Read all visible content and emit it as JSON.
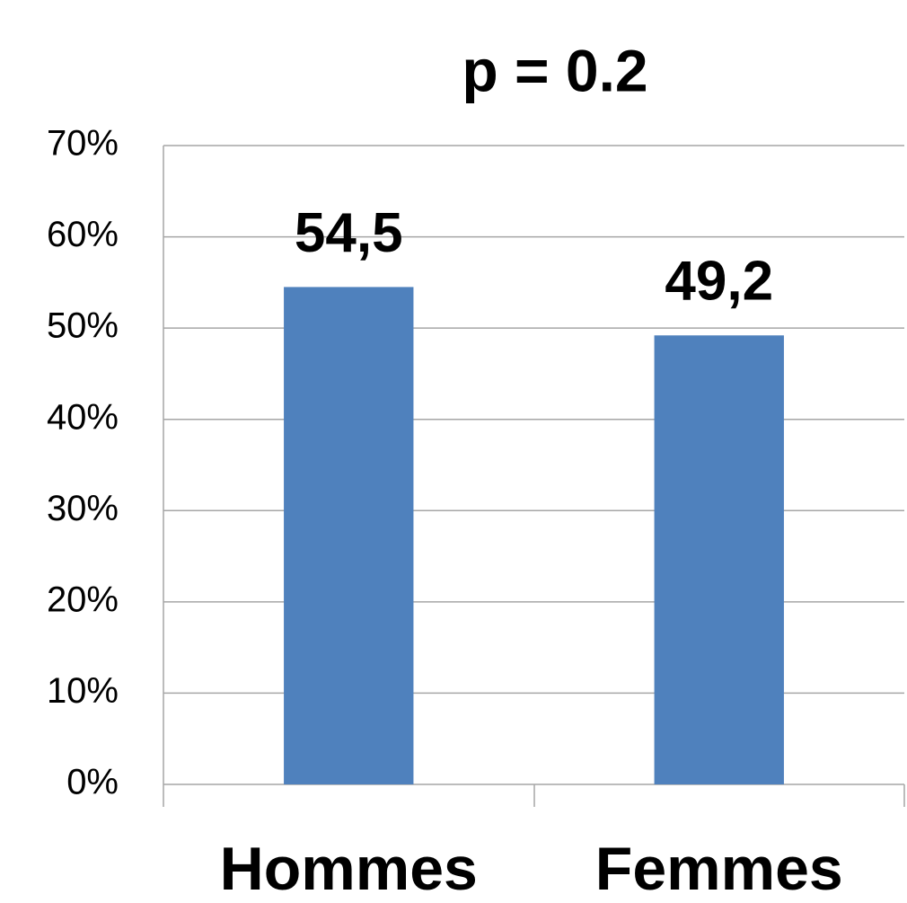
{
  "chart_data": {
    "type": "bar",
    "annotation": "p = 0.2",
    "annotation_color": "#ff0000",
    "categories": [
      "Hommes",
      "Femmes"
    ],
    "values": [
      54.5,
      49.2
    ],
    "value_labels": [
      "54,5",
      "49,2"
    ],
    "color": "#4f81bd",
    "ylim": [
      0,
      70
    ],
    "yticks": [
      {
        "value": 0,
        "label": "0%"
      },
      {
        "value": 10,
        "label": "10%"
      },
      {
        "value": 20,
        "label": "20%"
      },
      {
        "value": 30,
        "label": "30%"
      },
      {
        "value": 40,
        "label": "40%"
      },
      {
        "value": 50,
        "label": "50%"
      },
      {
        "value": 60,
        "label": "60%"
      },
      {
        "value": 70,
        "label": "70%"
      }
    ],
    "grid": true
  }
}
